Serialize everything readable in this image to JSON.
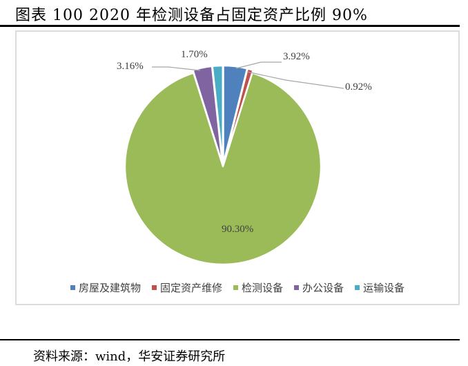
{
  "header": {
    "title": "图表 100 2020 年检测设备占固定资产比例 90%"
  },
  "footer": {
    "source": "资料来源：wind，华安证券研究所"
  },
  "colors": {
    "building": "#4F81BD",
    "maintenance": "#C0504D",
    "testing": "#9BBB59",
    "office": "#8064A2",
    "transport": "#4BACC6"
  },
  "legend": [
    {
      "label": "房屋及建筑物",
      "color": "#4F81BD"
    },
    {
      "label": "固定资产维修",
      "color": "#C0504D"
    },
    {
      "label": "检测设备",
      "color": "#9BBB59"
    },
    {
      "label": "办公设备",
      "color": "#8064A2"
    },
    {
      "label": "运输设备",
      "color": "#4BACC6"
    }
  ],
  "labels": {
    "building": "3.92%",
    "maintenance": "0.92%",
    "testing": "90.30%",
    "office": "3.16%",
    "transport": "1.70%"
  },
  "chart_data": {
    "type": "pie",
    "title": "2020 年检测设备占固定资产比例 90%",
    "categories": [
      "房屋及建筑物",
      "固定资产维修",
      "检测设备",
      "办公设备",
      "运输设备"
    ],
    "values": [
      3.92,
      0.92,
      90.3,
      3.16,
      1.7
    ],
    "unit": "%",
    "start_angle": "12 o'clock, clockwise",
    "legend_position": "bottom",
    "data_labels": [
      "3.92%",
      "0.92%",
      "90.30%",
      "3.16%",
      "1.70%"
    ]
  }
}
